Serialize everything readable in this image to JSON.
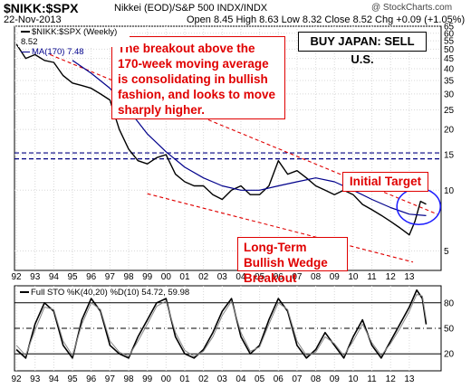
{
  "header": {
    "symbol": "$NIKK:$SPX",
    "description": "Nikkei (EOD)/S&P 500 INDX/INDX",
    "date": "22-Nov-2013",
    "open_label": "Open",
    "open": "8.45",
    "high_label": "High",
    "high": "8.63",
    "low_label": "Low",
    "low": "8.32",
    "close_label": "Close",
    "close": "8.52",
    "chg_label": "Chg",
    "chg": "+0.09 (+1.05%)",
    "watermark": "@ StockCharts.com"
  },
  "main_legend": {
    "series1": "$NIKK:$SPX (Weekly) 8.52",
    "series2": "MA(170) 7.48"
  },
  "annotations": {
    "breakout_text": "The breakout above the 170-week moving average is consolidating in bullish fashion, and looks to move sharply higher.",
    "buy_text": "BUY JAPAN: SELL U.S.",
    "target_text": "Initial Target",
    "wedge_text": "Long-Term Bullish Wedge Breakout"
  },
  "sto_legend": "Full STO %K(40,20) %D(10) 54.72, 59.98",
  "colors": {
    "price": "#000000",
    "ma": "#00008b",
    "annotation": "#e00000",
    "target_line": "#000080",
    "grid": "#d8d8d8"
  },
  "chart_data": [
    {
      "type": "line",
      "title": "$NIKK:$SPX",
      "scale": "log",
      "ylim": [
        4,
        65
      ],
      "y_ticks": [
        65,
        60,
        55,
        50,
        45,
        40,
        35,
        30,
        25,
        20,
        15,
        10,
        5
      ],
      "x_ticks": [
        "92",
        "93",
        "94",
        "95",
        "96",
        "97",
        "98",
        "99",
        "00",
        "01",
        "02",
        "03",
        "04",
        "05",
        "06",
        "07",
        "08",
        "09",
        "10",
        "11",
        "12",
        "13"
      ],
      "series": [
        {
          "name": "$NIKK:$SPX (Weekly) 8.52",
          "x": [
            1992.0,
            1992.5,
            1993.0,
            1993.5,
            1994.0,
            1994.5,
            1995.0,
            1995.5,
            1996.0,
            1996.5,
            1997.0,
            1997.5,
            1998.0,
            1998.5,
            1999.0,
            1999.5,
            2000.0,
            2000.5,
            2001.0,
            2001.5,
            2002.0,
            2002.5,
            2003.0,
            2003.5,
            2004.0,
            2004.5,
            2005.0,
            2005.5,
            2006.0,
            2006.5,
            2007.0,
            2007.5,
            2008.0,
            2008.5,
            2009.0,
            2009.5,
            2010.0,
            2010.5,
            2011.0,
            2011.5,
            2012.0,
            2012.5,
            2013.0,
            2013.3,
            2013.6,
            2013.9
          ],
          "values": [
            53,
            45,
            47,
            44,
            43,
            37,
            34,
            33,
            32,
            30,
            28,
            20,
            16,
            14,
            13.5,
            14.5,
            15,
            12,
            11,
            10.5,
            10.5,
            9.5,
            9,
            10,
            10.5,
            9.5,
            9.5,
            10.5,
            14,
            12,
            12.5,
            11.5,
            10.5,
            10,
            9.5,
            10,
            9.5,
            8.5,
            8,
            7.5,
            7,
            6.5,
            6,
            7,
            8.8,
            8.52
          ]
        },
        {
          "name": "MA(170) 7.48",
          "x": [
            1995.0,
            1996.0,
            1997.0,
            1998.0,
            1999.0,
            2000.0,
            2001.0,
            2002.0,
            2003.0,
            2004.0,
            2005.0,
            2006.0,
            2007.0,
            2008.0,
            2009.0,
            2010.0,
            2011.0,
            2012.0,
            2013.0,
            2013.9
          ],
          "values": [
            44,
            38,
            32,
            25,
            19,
            15.5,
            13,
            11.5,
            10.5,
            10,
            10,
            10.5,
            11,
            11.5,
            11,
            10,
            9,
            8.2,
            7.6,
            7.48
          ]
        }
      ]
    },
    {
      "type": "line",
      "title": "Full STO %K(40,20) %D(10)",
      "ylim": [
        0,
        100
      ],
      "y_ticks": [
        80,
        50,
        20
      ],
      "x_ticks": [
        "92",
        "93",
        "94",
        "95",
        "96",
        "97",
        "98",
        "99",
        "00",
        "01",
        "02",
        "03",
        "04",
        "05",
        "06",
        "07",
        "08",
        "09",
        "10",
        "11",
        "12",
        "13"
      ],
      "series": [
        {
          "name": "%K",
          "x": [
            1992.0,
            1992.5,
            1993.0,
            1993.5,
            1994.0,
            1994.5,
            1995.0,
            1995.5,
            1996.0,
            1996.5,
            1997.0,
            1997.5,
            1998.0,
            1998.5,
            1999.0,
            1999.5,
            2000.0,
            2000.5,
            2001.0,
            2001.5,
            2002.0,
            2002.5,
            2003.0,
            2003.5,
            2004.0,
            2004.5,
            2005.0,
            2005.5,
            2006.0,
            2006.5,
            2007.0,
            2007.5,
            2008.0,
            2008.5,
            2009.0,
            2009.5,
            2010.0,
            2010.5,
            2011.0,
            2011.5,
            2012.0,
            2012.5,
            2013.0,
            2013.4,
            2013.7,
            2013.9
          ],
          "values": [
            25,
            15,
            55,
            80,
            70,
            30,
            15,
            60,
            85,
            70,
            30,
            20,
            15,
            40,
            60,
            80,
            85,
            40,
            20,
            15,
            25,
            45,
            70,
            85,
            40,
            20,
            30,
            60,
            85,
            70,
            30,
            15,
            25,
            45,
            30,
            15,
            40,
            60,
            30,
            15,
            35,
            55,
            75,
            95,
            85,
            54.72
          ]
        },
        {
          "name": "%D",
          "x": [
            1992.0,
            1992.5,
            1993.0,
            1993.5,
            1994.0,
            1994.5,
            1995.0,
            1995.5,
            1996.0,
            1996.5,
            1997.0,
            1997.5,
            1998.0,
            1998.5,
            1999.0,
            1999.5,
            2000.0,
            2000.5,
            2001.0,
            2001.5,
            2002.0,
            2002.5,
            2003.0,
            2003.5,
            2004.0,
            2004.5,
            2005.0,
            2005.5,
            2006.0,
            2006.5,
            2007.0,
            2007.5,
            2008.0,
            2008.5,
            2009.0,
            2009.5,
            2010.0,
            2010.5,
            2011.0,
            2011.5,
            2012.0,
            2012.5,
            2013.0,
            2013.4,
            2013.7,
            2013.9
          ],
          "values": [
            30,
            18,
            48,
            75,
            72,
            35,
            18,
            55,
            80,
            72,
            35,
            22,
            17,
            35,
            55,
            76,
            82,
            45,
            24,
            17,
            23,
            40,
            65,
            82,
            45,
            23,
            28,
            55,
            80,
            72,
            35,
            18,
            22,
            40,
            32,
            18,
            35,
            55,
            33,
            18,
            32,
            50,
            70,
            90,
            88,
            59.98
          ]
        }
      ]
    }
  ]
}
